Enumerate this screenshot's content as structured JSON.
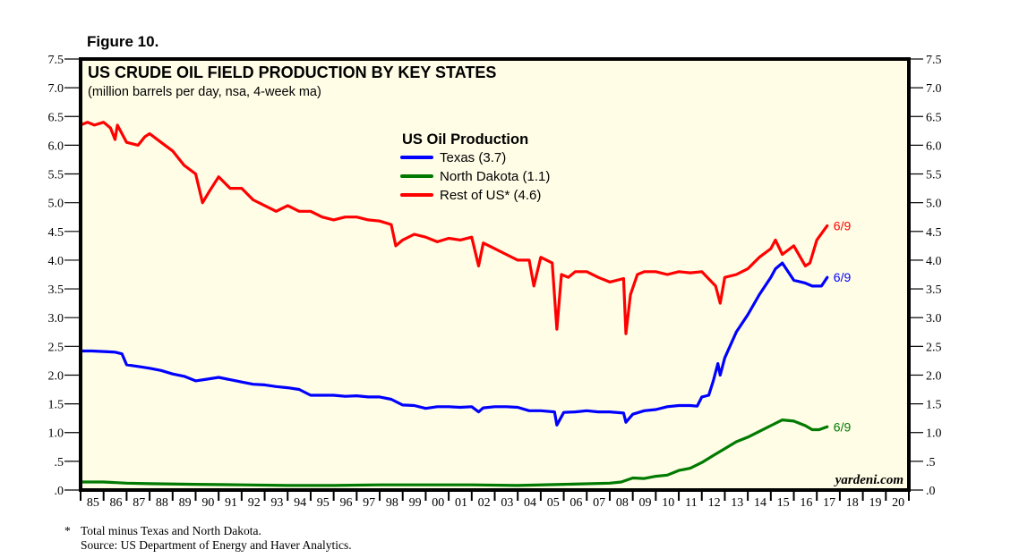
{
  "figure_label": "Figure 10.",
  "chart_data": {
    "type": "line",
    "title": "US CRUDE OIL FIELD PRODUCTION BY KEY STATES",
    "subtitle": "(million barrels per day, nsa, 4-week ma)",
    "xlabel": "",
    "ylabel": "",
    "ylim": [
      0,
      7.5
    ],
    "xlim": [
      1985,
      2021
    ],
    "yticks": [
      0,
      0.5,
      1.0,
      1.5,
      2.0,
      2.5,
      3.0,
      3.5,
      4.0,
      4.5,
      5.0,
      5.5,
      6.0,
      6.5,
      7.0,
      7.5
    ],
    "ytick_labels": [
      ".0",
      ".5",
      "1.0",
      "1.5",
      "2.0",
      "2.5",
      "3.0",
      "3.5",
      "4.0",
      "4.5",
      "5.0",
      "5.5",
      "6.0",
      "6.5",
      "7.0",
      "7.5"
    ],
    "xtick_labels": [
      "85",
      "86",
      "87",
      "88",
      "89",
      "90",
      "91",
      "92",
      "93",
      "94",
      "95",
      "96",
      "97",
      "98",
      "99",
      "00",
      "01",
      "02",
      "03",
      "04",
      "05",
      "06",
      "07",
      "08",
      "09",
      "10",
      "11",
      "12",
      "13",
      "14",
      "15",
      "16",
      "17",
      "18",
      "19",
      "20"
    ],
    "grid": false,
    "legend": {
      "title": "US Oil Production",
      "position": "top-center",
      "entries": [
        {
          "label": "Texas (3.7)",
          "color": "#0000ff"
        },
        {
          "label": "North Dakota (1.1)",
          "color": "#007a00"
        },
        {
          "label": "Rest of US* (4.6)",
          "color": "#ff0000"
        }
      ]
    },
    "series": [
      {
        "name": "Texas",
        "color": "#0000ff",
        "end_label": "6/9",
        "x": [
          1985.0,
          1985.5,
          1986.0,
          1986.5,
          1986.8,
          1987.0,
          1987.5,
          1988.0,
          1988.5,
          1989.0,
          1989.5,
          1990.0,
          1990.5,
          1991.0,
          1991.5,
          1992.0,
          1992.5,
          1993.0,
          1993.5,
          1994.0,
          1994.5,
          1995.0,
          1995.5,
          1996.0,
          1996.5,
          1997.0,
          1997.5,
          1998.0,
          1998.5,
          1999.0,
          1999.5,
          2000.0,
          2000.5,
          2001.0,
          2001.5,
          2002.0,
          2002.3,
          2002.5,
          2003.0,
          2003.5,
          2004.0,
          2004.5,
          2005.0,
          2005.6,
          2005.7,
          2006.0,
          2006.5,
          2007.0,
          2007.5,
          2008.0,
          2008.6,
          2008.7,
          2009.0,
          2009.5,
          2010.0,
          2010.5,
          2011.0,
          2011.5,
          2011.8,
          2012.0,
          2012.3,
          2012.5,
          2012.7,
          2012.8,
          2013.0,
          2013.5,
          2014.0,
          2014.5,
          2015.0,
          2015.2,
          2015.5,
          2016.0,
          2016.5,
          2016.8,
          2017.2,
          2017.45
        ],
        "values": [
          2.42,
          2.42,
          2.41,
          2.4,
          2.37,
          2.18,
          2.15,
          2.12,
          2.08,
          2.02,
          1.98,
          1.9,
          1.93,
          1.96,
          1.92,
          1.88,
          1.84,
          1.83,
          1.8,
          1.78,
          1.75,
          1.65,
          1.65,
          1.65,
          1.63,
          1.64,
          1.62,
          1.62,
          1.58,
          1.48,
          1.47,
          1.42,
          1.45,
          1.45,
          1.44,
          1.45,
          1.36,
          1.43,
          1.45,
          1.45,
          1.44,
          1.38,
          1.38,
          1.36,
          1.13,
          1.35,
          1.36,
          1.38,
          1.36,
          1.36,
          1.34,
          1.18,
          1.32,
          1.38,
          1.4,
          1.45,
          1.47,
          1.47,
          1.46,
          1.62,
          1.65,
          1.9,
          2.2,
          2.0,
          2.3,
          2.75,
          3.05,
          3.4,
          3.7,
          3.85,
          3.95,
          3.65,
          3.6,
          3.55,
          3.55,
          3.7
        ]
      },
      {
        "name": "North Dakota",
        "color": "#007a00",
        "end_label": "6/9",
        "x": [
          1985.0,
          1986.0,
          1987.0,
          1988.0,
          1990.0,
          1992.0,
          1994.0,
          1996.0,
          1998.0,
          2000.0,
          2002.0,
          2004.0,
          2006.0,
          2008.0,
          2008.5,
          2009.0,
          2009.5,
          2010.0,
          2010.5,
          2011.0,
          2011.5,
          2012.0,
          2012.5,
          2013.0,
          2013.5,
          2014.0,
          2014.5,
          2015.0,
          2015.5,
          2016.0,
          2016.5,
          2016.8,
          2017.1,
          2017.45
        ],
        "values": [
          0.14,
          0.14,
          0.12,
          0.11,
          0.1,
          0.09,
          0.08,
          0.08,
          0.09,
          0.09,
          0.09,
          0.08,
          0.1,
          0.12,
          0.14,
          0.21,
          0.2,
          0.24,
          0.26,
          0.34,
          0.38,
          0.48,
          0.6,
          0.72,
          0.84,
          0.92,
          1.02,
          1.12,
          1.22,
          1.2,
          1.12,
          1.05,
          1.05,
          1.1
        ]
      },
      {
        "name": "Rest of US*",
        "color": "#ff0000",
        "end_label": "6/9",
        "x": [
          1985.0,
          1985.3,
          1985.6,
          1986.0,
          1986.3,
          1986.5,
          1986.6,
          1987.0,
          1987.5,
          1987.8,
          1988.0,
          1988.5,
          1989.0,
          1989.5,
          1990.0,
          1990.3,
          1990.6,
          1991.0,
          1991.5,
          1992.0,
          1992.5,
          1993.0,
          1993.5,
          1994.0,
          1994.5,
          1995.0,
          1995.5,
          1996.0,
          1996.5,
          1997.0,
          1997.5,
          1998.0,
          1998.5,
          1998.7,
          1999.0,
          1999.5,
          2000.0,
          2000.5,
          2001.0,
          2001.5,
          2002.0,
          2002.3,
          2002.5,
          2003.0,
          2003.5,
          2004.0,
          2004.5,
          2004.7,
          2005.0,
          2005.5,
          2005.7,
          2005.9,
          2006.2,
          2006.5,
          2007.0,
          2007.5,
          2008.0,
          2008.6,
          2008.7,
          2008.9,
          2009.2,
          2009.5,
          2010.0,
          2010.5,
          2011.0,
          2011.5,
          2012.0,
          2012.6,
          2012.8,
          2013.0,
          2013.5,
          2014.0,
          2014.5,
          2015.0,
          2015.2,
          2015.5,
          2016.0,
          2016.5,
          2016.7,
          2017.0,
          2017.45
        ],
        "values": [
          6.35,
          6.4,
          6.35,
          6.4,
          6.3,
          6.1,
          6.35,
          6.05,
          6.0,
          6.15,
          6.2,
          6.05,
          5.9,
          5.65,
          5.5,
          5.0,
          5.2,
          5.45,
          5.25,
          5.25,
          5.05,
          4.95,
          4.85,
          4.95,
          4.85,
          4.85,
          4.75,
          4.7,
          4.75,
          4.75,
          4.7,
          4.68,
          4.62,
          4.25,
          4.35,
          4.45,
          4.4,
          4.32,
          4.38,
          4.35,
          4.4,
          3.9,
          4.3,
          4.2,
          4.1,
          4.0,
          4.0,
          3.55,
          4.05,
          3.95,
          2.8,
          3.75,
          3.7,
          3.8,
          3.8,
          3.7,
          3.62,
          3.68,
          2.72,
          3.4,
          3.75,
          3.8,
          3.8,
          3.75,
          3.8,
          3.78,
          3.8,
          3.55,
          3.25,
          3.7,
          3.75,
          3.85,
          4.05,
          4.2,
          4.35,
          4.1,
          4.25,
          3.9,
          3.95,
          4.35,
          4.6
        ]
      }
    ],
    "annotations": [
      "yardeni.com"
    ]
  },
  "footnotes": {
    "star_note": "Total minus Texas and North Dakota.",
    "source": "Source: US Department of Energy and Haver Analytics.",
    "star_symbol": "*"
  }
}
